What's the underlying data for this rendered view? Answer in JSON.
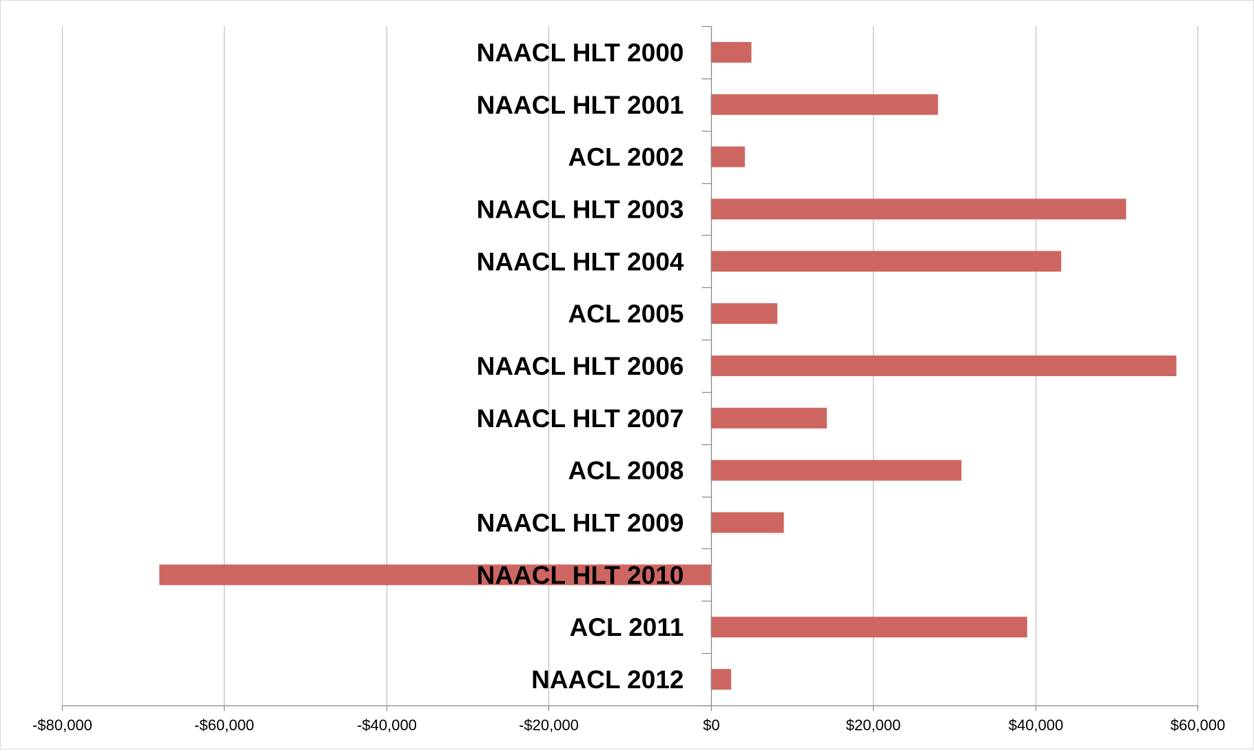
{
  "chart_data": {
    "type": "bar",
    "orientation": "horizontal",
    "title": "",
    "xlabel": "",
    "ylabel": "",
    "categories": [
      "NAACL HLT 2000",
      "NAACL HLT 2001",
      "ACL 2002",
      "NAACL HLT 2003",
      "NAACL HLT 2004",
      "ACL 2005",
      "NAACL HLT 2006",
      "NAACL HLT 2007",
      "ACL 2008",
      "NAACL HLT 2009",
      "NAACL HLT 2010",
      "ACL 2011",
      "NAACL 2012"
    ],
    "values": [
      5000,
      28000,
      4200,
      51200,
      43200,
      8200,
      57400,
      14300,
      30900,
      9000,
      -68000,
      39000,
      2500
    ],
    "xlim": [
      -80000,
      60000
    ],
    "xticks": [
      -80000,
      -60000,
      -40000,
      -20000,
      0,
      20000,
      40000,
      60000
    ],
    "xtick_labels": [
      "-$80,000",
      "-$60,000",
      "-$40,000",
      "-$20,000",
      "$0",
      "$20,000",
      "$40,000",
      "$60,000"
    ],
    "grid": "vertical",
    "legend": "none",
    "bar_color": "#cd6660",
    "grid_color": "#bfbfbf",
    "axis_color": "#868686"
  }
}
